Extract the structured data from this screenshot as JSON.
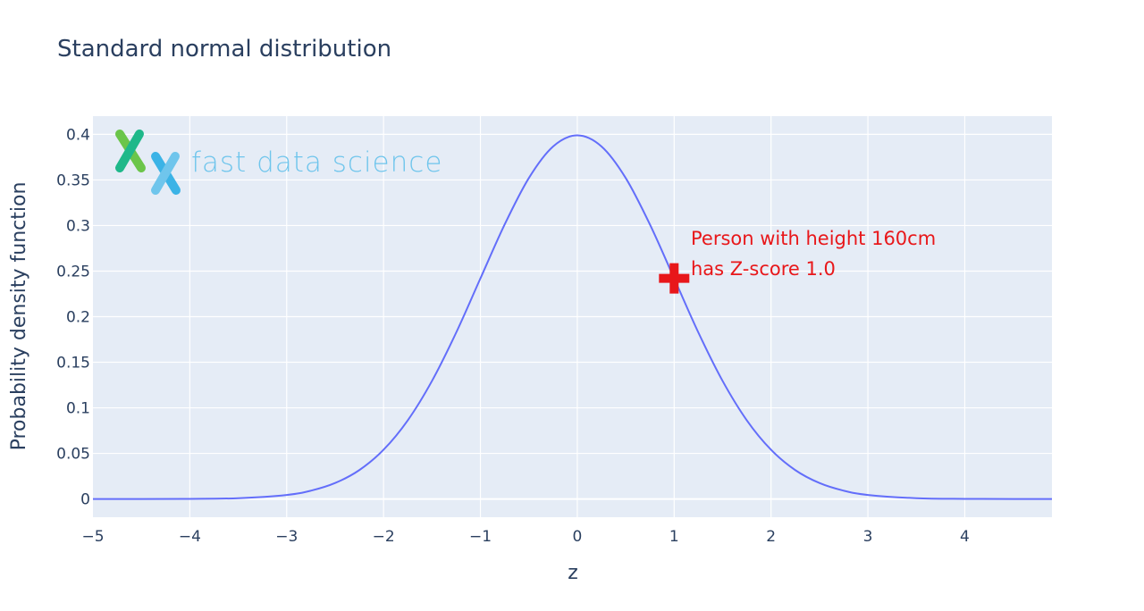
{
  "chart_data": {
    "type": "line",
    "title": "Standard normal distribution",
    "xlabel": "z",
    "ylabel": "Probability density function",
    "xlim": [
      -5,
      4.9
    ],
    "ylim": [
      -0.02,
      0.42
    ],
    "x_ticks": [
      -5,
      -4,
      -3,
      -2,
      -1,
      0,
      1,
      2,
      3,
      4
    ],
    "x_tick_labels": [
      "−5",
      "−4",
      "−3",
      "−2",
      "−1",
      "0",
      "1",
      "2",
      "3",
      "4"
    ],
    "y_ticks": [
      0,
      0.05,
      0.1,
      0.15,
      0.2,
      0.25,
      0.3,
      0.35,
      0.4
    ],
    "y_tick_labels": [
      "0",
      "0.05",
      "0.1",
      "0.15",
      "0.2",
      "0.25",
      "0.3",
      "0.35",
      "0.4"
    ],
    "grid": true,
    "series": [
      {
        "color": "#636efa",
        "x": [
          -5,
          -4.5,
          -4,
          -3.5,
          -3,
          -2.75,
          -2.5,
          -2.25,
          -2,
          -1.75,
          -1.5,
          -1.25,
          -1,
          -0.75,
          -0.5,
          -0.25,
          0,
          0.25,
          0.5,
          0.75,
          1,
          1.25,
          1.5,
          1.75,
          2,
          2.25,
          2.5,
          2.75,
          3,
          3.5,
          4,
          4.5,
          4.9
        ],
        "values": [
          1.5e-06,
          1.6e-05,
          0.000134,
          0.000873,
          0.00443,
          0.00909,
          0.0175,
          0.0317,
          0.054,
          0.0863,
          0.1295,
          0.1826,
          0.242,
          0.3011,
          0.3521,
          0.3867,
          0.3989,
          0.3867,
          0.3521,
          0.3011,
          0.242,
          0.1826,
          0.1295,
          0.0863,
          0.054,
          0.0317,
          0.0175,
          0.00909,
          0.00443,
          0.000873,
          0.000134,
          1.6e-05,
          2.4e-06
        ]
      }
    ],
    "marker": {
      "x": 1.0,
      "y": 0.242,
      "symbol": "cross",
      "color": "#e8171a"
    },
    "annotation": {
      "lines": [
        "Person with height 160cm",
        "has Z-score 1.0"
      ],
      "color": "#e8171a"
    }
  },
  "logo": {
    "text": "fast data science",
    "colors": {
      "green": "#6bc54a",
      "teal": "#1fb88a",
      "blue": "#3bb3e6",
      "light_blue": "#6fc5ec"
    }
  },
  "colors": {
    "plot_bg": "#e5ecf6",
    "grid": "#ffffff",
    "text": "#2a3f5f"
  }
}
